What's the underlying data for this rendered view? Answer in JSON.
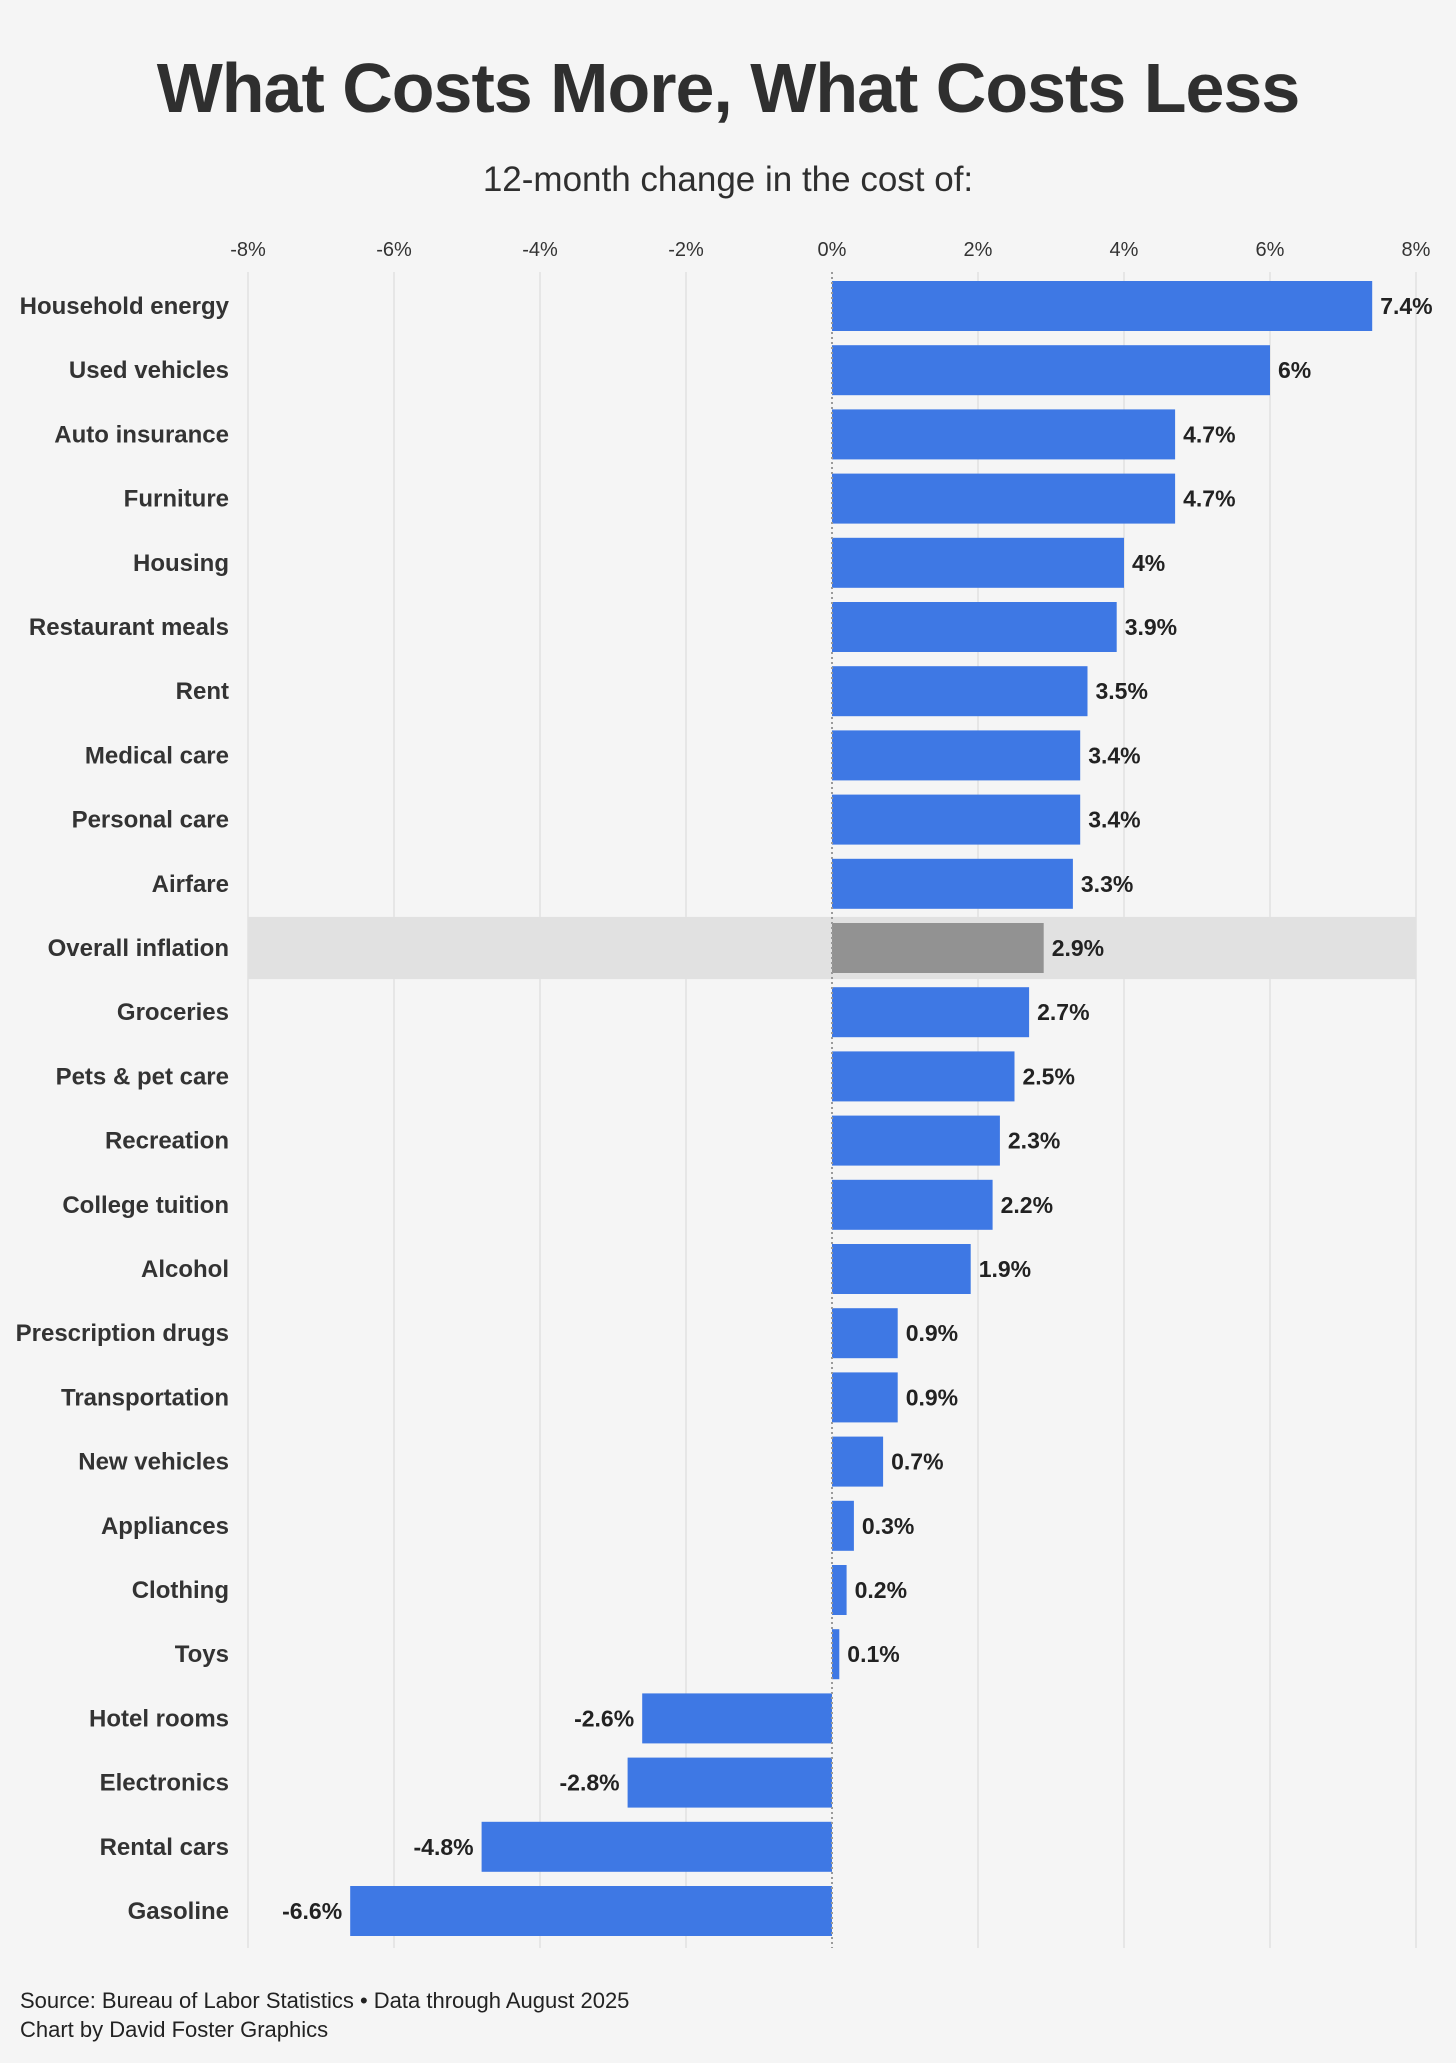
{
  "chart_data": {
    "type": "bar",
    "orientation": "horizontal",
    "title": "What Costs More, What Costs Less",
    "subtitle": "12-month change in the cost of:",
    "categories": [
      "Household energy",
      "Used vehicles",
      "Auto insurance",
      "Furniture",
      "Housing",
      "Restaurant meals",
      "Rent",
      "Medical care",
      "Personal care",
      "Airfare",
      "Overall inflation",
      "Groceries",
      "Pets & pet care",
      "Recreation",
      "College tuition",
      "Alcohol",
      "Prescription drugs",
      "Transportation",
      "New vehicles",
      "Appliances",
      "Clothing",
      "Toys",
      "Hotel rooms",
      "Electronics",
      "Rental cars",
      "Gasoline"
    ],
    "values": [
      7.4,
      6,
      4.7,
      4.7,
      4,
      3.9,
      3.5,
      3.4,
      3.4,
      3.3,
      2.9,
      2.7,
      2.5,
      2.3,
      2.2,
      1.9,
      0.9,
      0.9,
      0.7,
      0.3,
      0.2,
      0.1,
      -2.6,
      -2.8,
      -4.8,
      -6.6
    ],
    "value_labels": [
      "7.4%",
      "6%",
      "4.7%",
      "4.7%",
      "4%",
      "3.9%",
      "3.5%",
      "3.4%",
      "3.4%",
      "3.3%",
      "2.9%",
      "2.7%",
      "2.5%",
      "2.3%",
      "2.2%",
      "1.9%",
      "0.9%",
      "0.9%",
      "0.7%",
      "0.3%",
      "0.2%",
      "0.1%",
      "-2.6%",
      "-2.8%",
      "-4.8%",
      "-6.6%"
    ],
    "highlight": "Overall inflation",
    "xlim": [
      -8,
      8
    ],
    "xticks": [
      -8,
      -6,
      -4,
      -2,
      0,
      2,
      4,
      6,
      8
    ],
    "xtick_labels": [
      "-8%",
      "-6%",
      "-4%",
      "-2%",
      "0%",
      "2%",
      "4%",
      "6%",
      "8%"
    ],
    "grid": true,
    "colors": {
      "bar": "#3e78e4",
      "highlight_bar": "#929292",
      "highlight_band": "#e1e1e1",
      "grid": "#e6e6e6",
      "zero_line": "#9a9a9a"
    }
  },
  "footer": {
    "source": "Source: Bureau of Labor Statistics • Data through August 2025",
    "credit": "Chart by David Foster Graphics"
  }
}
